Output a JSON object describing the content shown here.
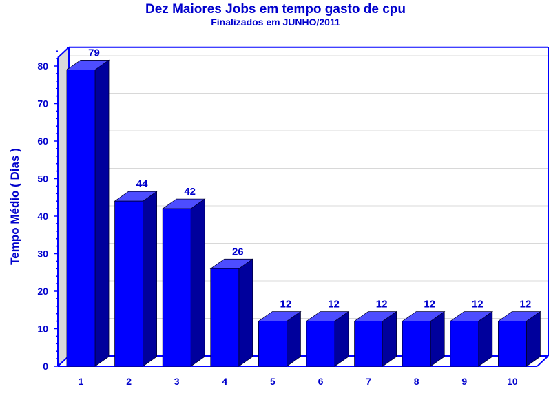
{
  "chart_data": {
    "type": "bar",
    "title": "Dez Maiores Jobs em tempo gasto de cpu",
    "subtitle": "Finalizados em JUNHO/2011",
    "xlabel": "",
    "ylabel": "Tempo Médio ( Dias )",
    "categories": [
      "1",
      "2",
      "3",
      "4",
      "5",
      "6",
      "7",
      "8",
      "9",
      "10"
    ],
    "values": [
      79,
      44,
      42,
      26,
      12,
      12,
      12,
      12,
      12,
      12
    ],
    "data_labels": [
      "79",
      "44",
      "42",
      "26",
      "12",
      "12",
      "12",
      "12",
      "12",
      "12"
    ],
    "ylim": [
      0,
      85
    ],
    "yticks": [
      0,
      10,
      20,
      30,
      40,
      50,
      60,
      70,
      80
    ],
    "ytick_labels": [
      "0",
      "10",
      "20",
      "30",
      "40",
      "50",
      "60",
      "70",
      "80"
    ],
    "grid": true,
    "legend": "none",
    "style": "3d",
    "colors": {
      "bar_front": "#0000ff",
      "bar_top": "#4d4dff",
      "bar_side": "#00009c",
      "text": "#0000cc",
      "frame": "#0000ff",
      "left_wall": "#d9d9d9",
      "grid": "#d8d8d8"
    }
  }
}
